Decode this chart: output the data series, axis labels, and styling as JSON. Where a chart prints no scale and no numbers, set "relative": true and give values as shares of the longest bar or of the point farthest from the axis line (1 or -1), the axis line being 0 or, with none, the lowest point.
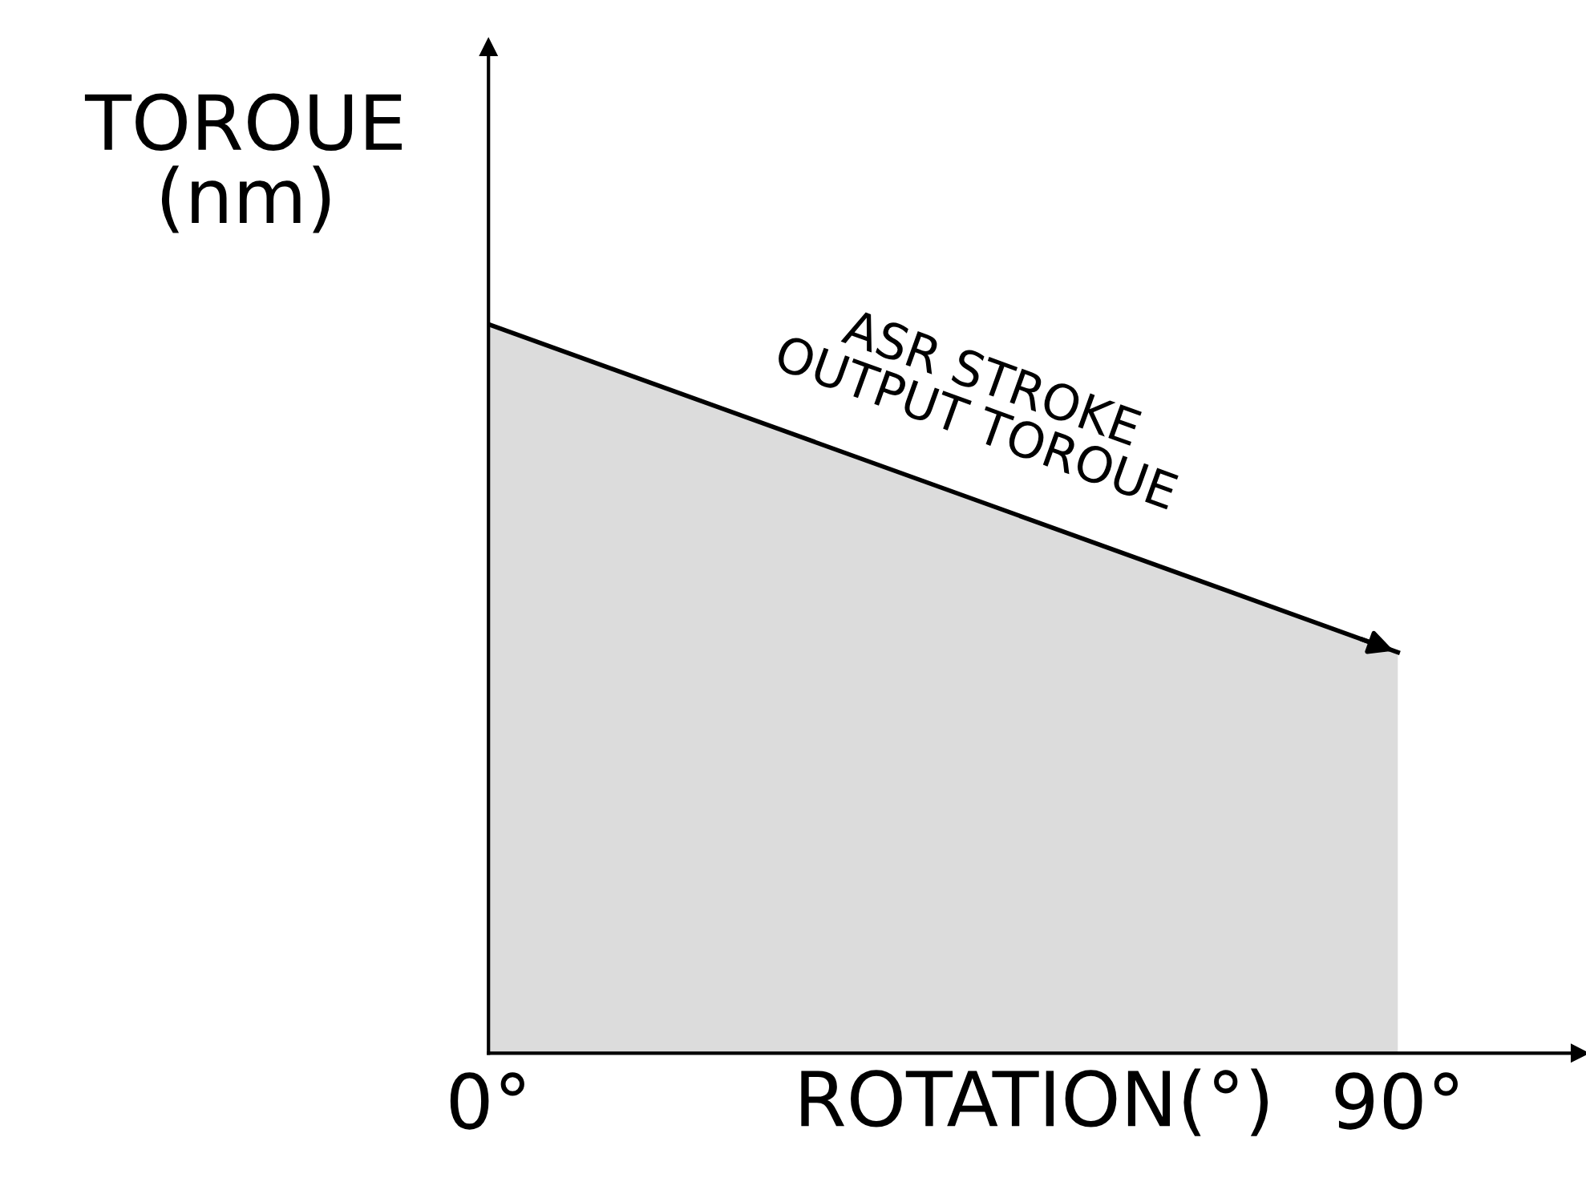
{
  "chart_data": {
    "type": "area",
    "relative": true,
    "x": [
      0,
      90
    ],
    "series": [
      {
        "color": "#dcdcdc",
        "values": [
          1,
          0.55
        ]
      }
    ],
    "xlim": [
      0,
      108
    ],
    "xticks": [
      {
        "value": 0,
        "label": "0°"
      },
      {
        "value": 90,
        "label": "90°"
      }
    ],
    "xlabel": "ROTATION(°)",
    "ylabel": "TOROUE\n(nm)",
    "annotations": [
      {
        "text": "ASR STROKE\nOUTPUT TOROUE",
        "x": 45,
        "y": 0.775
      }
    ],
    "grid": false,
    "legend": false
  }
}
